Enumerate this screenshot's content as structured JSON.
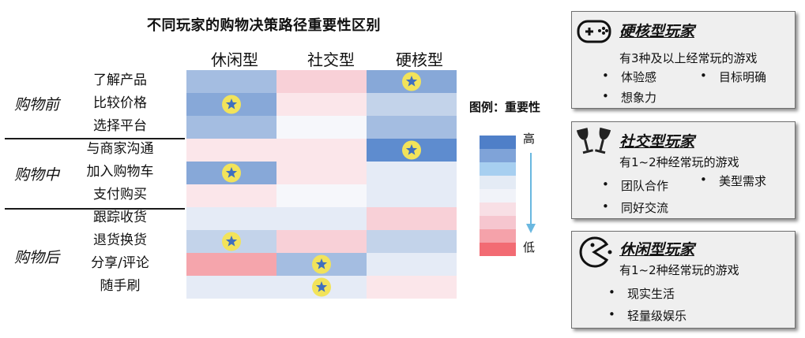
{
  "chart_data": {
    "type": "heatmap",
    "title": "不同玩家的购物决策路径重要性区别",
    "columns": [
      "休闲型",
      "社交型",
      "硬核型"
    ],
    "stages": [
      {
        "name": "购物前",
        "rows": [
          "了解产品",
          "比较价格",
          "选择平台"
        ]
      },
      {
        "name": "购物中",
        "rows": [
          "与商家沟通",
          "加入购物车",
          "支付购买"
        ]
      },
      {
        "name": "购物后",
        "rows": [
          "跟踪收货",
          "退货换货",
          "分享/评论",
          "随手刷"
        ]
      }
    ],
    "rows": [
      "了解产品",
      "比较价格",
      "选择平台",
      "与商家沟通",
      "加入购物车",
      "支付购买",
      "跟踪收货",
      "退货换货",
      "分享/评论",
      "随手刷"
    ],
    "importance_levels": 9,
    "values": [
      [
        2,
        7,
        1
      ],
      [
        1,
        6,
        3
      ],
      [
        2,
        5,
        2
      ],
      [
        6,
        6,
        0
      ],
      [
        1,
        6,
        4
      ],
      [
        6,
        5,
        4
      ],
      [
        4,
        4,
        7
      ],
      [
        3,
        7,
        3
      ],
      [
        8,
        2,
        4
      ],
      [
        4,
        4,
        6
      ]
    ],
    "stars": [
      [
        false,
        false,
        true
      ],
      [
        true,
        false,
        false
      ],
      [
        false,
        false,
        false
      ],
      [
        false,
        false,
        true
      ],
      [
        true,
        false,
        false
      ],
      [
        false,
        false,
        false
      ],
      [
        false,
        false,
        false
      ],
      [
        true,
        false,
        false
      ],
      [
        false,
        true,
        false
      ],
      [
        false,
        true,
        false
      ]
    ],
    "legend": {
      "title": "图例：重要性",
      "high": "高",
      "low": "低",
      "colors": [
        "#4f7fc8",
        "#7fa3d8",
        "#a7cff0",
        "#e4ebf5",
        "#f1f3f9",
        "#f8dfe5",
        "#f6c6cf",
        "#f5a2aa",
        "#f26b73"
      ]
    },
    "palette": [
      "#5e8ccf",
      "#87a8d8",
      "#a4bde1",
      "#c3d3ea",
      "#e5ebf6",
      "#f6f7fb",
      "#fbe6ea",
      "#f8d0d7",
      "#f5a5ac",
      "#f3727a"
    ]
  },
  "cards": [
    {
      "icon": "gamepad-icon",
      "title": "硬核型玩家",
      "sub": "有3种及以上经常玩的游戏",
      "bullets": [
        "体验感",
        "目标明确",
        "想象力"
      ]
    },
    {
      "icon": "wine-glasses-icon",
      "title": "社交型玩家",
      "sub": "有1~2种经常玩的游戏",
      "bullets": [
        "团队合作",
        "美型需求",
        "同好交流"
      ]
    },
    {
      "icon": "pacman-icon",
      "title": "休闲型玩家",
      "sub": "有1~2种经常玩的游戏",
      "bullets": [
        "现实生活",
        "轻量级娱乐"
      ]
    }
  ]
}
